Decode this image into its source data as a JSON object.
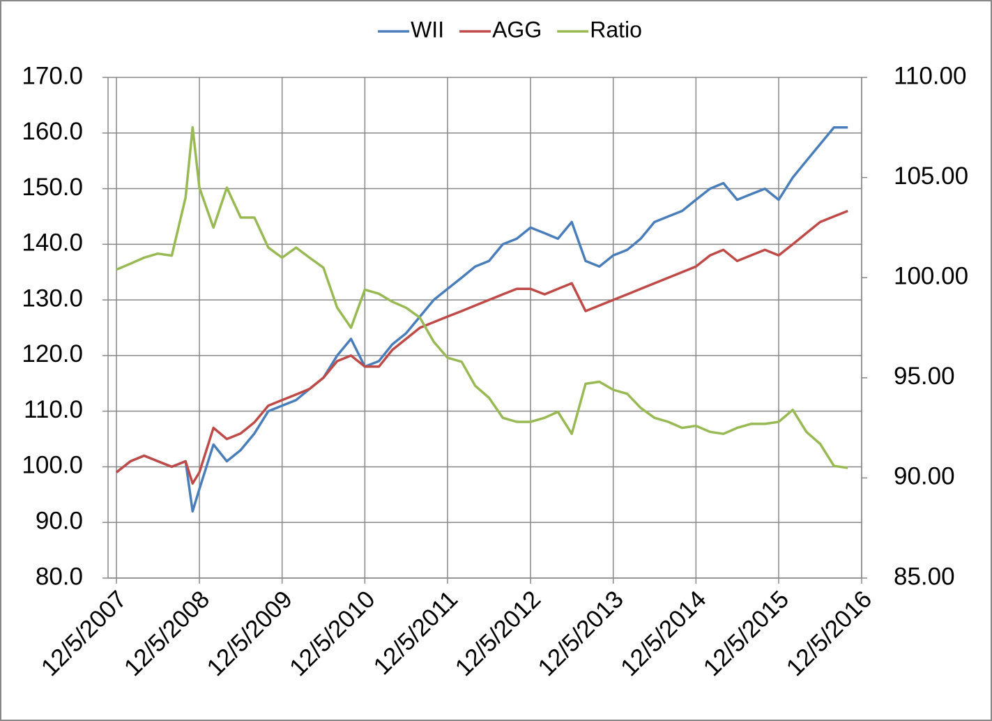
{
  "chart_data": {
    "type": "line",
    "x": [
      "12/5/2007",
      "2/5/2008",
      "4/5/2008",
      "6/5/2008",
      "8/5/2008",
      "10/5/2008",
      "11/5/2008",
      "12/5/2008",
      "2/5/2009",
      "4/5/2009",
      "6/5/2009",
      "8/5/2009",
      "10/5/2009",
      "12/5/2009",
      "2/5/2010",
      "4/5/2010",
      "6/5/2010",
      "8/5/2010",
      "10/5/2010",
      "12/5/2010",
      "2/5/2011",
      "4/5/2011",
      "6/5/2011",
      "8/5/2011",
      "10/5/2011",
      "12/5/2011",
      "2/5/2012",
      "4/5/2012",
      "6/5/2012",
      "8/5/2012",
      "10/5/2012",
      "12/5/2012",
      "2/5/2013",
      "4/5/2013",
      "6/5/2013",
      "8/5/2013",
      "10/5/2013",
      "12/5/2013",
      "2/5/2014",
      "4/5/2014",
      "6/5/2014",
      "8/5/2014",
      "10/5/2014",
      "12/5/2014",
      "2/5/2015",
      "4/5/2015",
      "6/5/2015",
      "8/5/2015",
      "10/5/2015",
      "12/5/2015",
      "2/5/2016",
      "4/5/2016",
      "6/5/2016",
      "8/5/2016",
      "10/5/2016"
    ],
    "series": [
      {
        "name": "WII",
        "color": "#4a7ebb",
        "values": [
          99,
          101,
          102,
          101,
          100,
          101,
          92,
          96,
          104,
          101,
          103,
          106,
          110,
          111,
          112,
          114,
          116,
          120,
          123,
          118,
          119,
          122,
          124,
          127,
          130,
          132,
          134,
          136,
          137,
          140,
          141,
          143,
          142,
          141,
          144,
          137,
          136,
          138,
          139,
          141,
          144,
          145,
          146,
          148,
          150,
          151,
          148,
          149,
          150,
          148,
          152,
          155,
          158,
          161,
          161
        ]
      },
      {
        "name": "AGG",
        "color": "#be4b48",
        "values": [
          99,
          101,
          102,
          101,
          100,
          101,
          97,
          99,
          107,
          105,
          106,
          108,
          111,
          112,
          113,
          114,
          116,
          119,
          120,
          118,
          118,
          121,
          123,
          125,
          126,
          127,
          128,
          129,
          130,
          131,
          132,
          132,
          131,
          132,
          133,
          128,
          129,
          130,
          131,
          132,
          133,
          134,
          135,
          136,
          138,
          139,
          137,
          138,
          139,
          138,
          140,
          142,
          144,
          145,
          146
        ]
      },
      {
        "name": "Ratio",
        "color": "#98b954",
        "axis": "y2",
        "values": [
          100.4,
          100.7,
          101.0,
          101.2,
          101.1,
          104,
          107.5,
          104.5,
          102.5,
          104.5,
          103,
          103,
          101.5,
          101,
          101.5,
          101,
          100.5,
          98.5,
          97.5,
          99.4,
          99.2,
          98.8,
          98.5,
          98,
          96.8,
          96,
          95.8,
          94.6,
          94,
          93,
          92.8,
          92.8,
          93,
          93.3,
          92.2,
          94.7,
          94.8,
          94.4,
          94.2,
          93.5,
          93,
          92.8,
          92.5,
          92.6,
          92.3,
          92.2,
          92.5,
          92.7,
          92.7,
          92.8,
          93.4,
          92.3,
          91.7,
          90.6,
          90.5
        ]
      }
    ],
    "xlim": [
      "10/29/2007",
      "12/5/2016"
    ],
    "xticks": [
      "12/5/2007",
      "12/5/2008",
      "12/5/2009",
      "12/5/2010",
      "12/5/2011",
      "12/5/2012",
      "12/5/2013",
      "12/5/2014",
      "12/5/2015",
      "12/5/2016"
    ],
    "ylim": [
      80,
      170
    ],
    "yticks": [
      {
        "value": 80,
        "label": "80.0"
      },
      {
        "value": 90,
        "label": "90.0"
      },
      {
        "value": 100,
        "label": "100.0"
      },
      {
        "value": 110,
        "label": "110.0"
      },
      {
        "value": 120,
        "label": "120.0"
      },
      {
        "value": 130,
        "label": "130.0"
      },
      {
        "value": 140,
        "label": "140.0"
      },
      {
        "value": 150,
        "label": "150.0"
      },
      {
        "value": 160,
        "label": "160.0"
      },
      {
        "value": 170,
        "label": "170.0"
      }
    ],
    "y2lim": [
      85,
      110
    ],
    "y2ticks": [
      {
        "value": 85,
        "label": "85.00"
      },
      {
        "value": 90,
        "label": "90.00"
      },
      {
        "value": 95,
        "label": "95.00"
      },
      {
        "value": 100,
        "label": "100.00"
      },
      {
        "value": 105,
        "label": "105.00"
      },
      {
        "value": 110,
        "label": "110.00"
      }
    ],
    "grid": true,
    "legend": "top"
  }
}
